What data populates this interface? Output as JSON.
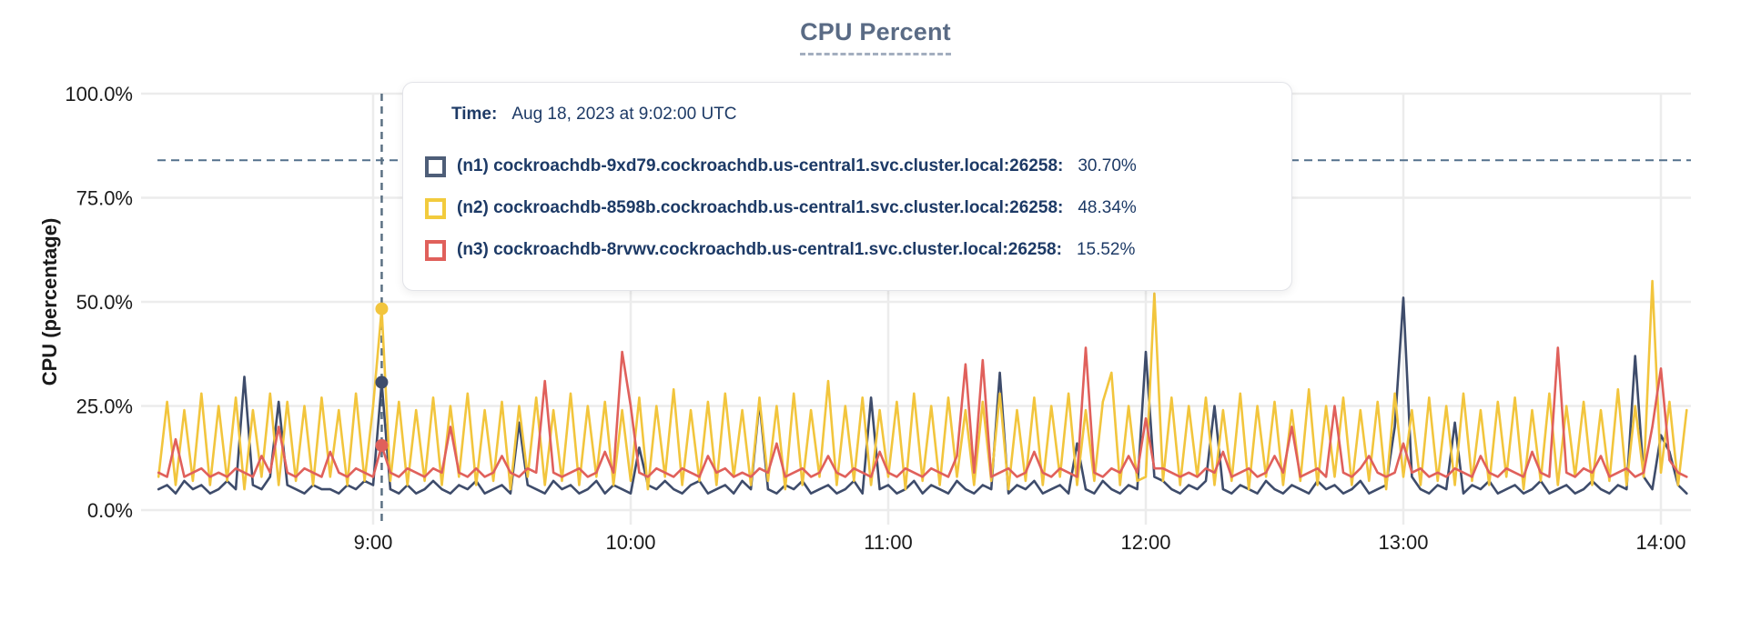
{
  "title": "CPU Percent",
  "tooltip": {
    "time_label": "Time:",
    "time_value": "Aug 18, 2023 at 9:02:00 UTC",
    "rows": [
      {
        "label": "(n1) cockroachdb-9xd79.cockroachdb.us-central1.svc.cluster.local:26258:",
        "value": "30.70%",
        "color": "#47587466"
      },
      {
        "label": "(n2) cockroachdb-8598b.cockroachdb.us-central1.svc.cluster.local:26258:",
        "value": "48.34%",
        "color": "#F2CB3D"
      },
      {
        "label": "(n3) cockroachdb-8rvwv.cockroachdb.us-central1.svc.cluster.local:26258:",
        "value": "15.52%",
        "color": "#E0605B"
      }
    ],
    "marker_colors": [
      "#4E5E78",
      "#F2CB3D",
      "#E0605B"
    ]
  },
  "chart_data": {
    "type": "line",
    "title": "CPU Percent",
    "xlabel": "",
    "ylabel": "CPU (percentage)",
    "ylim": [
      0,
      100
    ],
    "grid": true,
    "legend_position": "tooltip-overlay",
    "y_ticks": [
      {
        "value": 0,
        "label": "0.0%"
      },
      {
        "value": 25,
        "label": "25.0%"
      },
      {
        "value": 50,
        "label": "50.0%"
      },
      {
        "value": 75,
        "label": "75.0%"
      },
      {
        "value": 100,
        "label": "100.0%"
      }
    ],
    "x_ticks": [
      {
        "minute": 540,
        "label": "9:00"
      },
      {
        "minute": 600,
        "label": "10:00"
      },
      {
        "minute": 660,
        "label": "11:00"
      },
      {
        "minute": 720,
        "label": "12:00"
      },
      {
        "minute": 780,
        "label": "13:00"
      },
      {
        "minute": 840,
        "label": "14:00"
      }
    ],
    "threshold_dashed_percent": 84,
    "hover": {
      "minute": 542,
      "time": "Aug 18, 2023 at 9:02:00 UTC"
    },
    "t_start_min": 490,
    "t_step_min": 2,
    "series": [
      {
        "id": "n1",
        "name": "(n1) cockroachdb-9xd79.cockroachdb.us-central1.svc.cluster.local:26258",
        "color": "#3E4C6B",
        "hover_value_percent": 30.7,
        "values": [
          5,
          6,
          4,
          7,
          5,
          6,
          4,
          5,
          7,
          5,
          32,
          6,
          5,
          8,
          26,
          6,
          5,
          4,
          6,
          5,
          5,
          4,
          6,
          5,
          7,
          6,
          30.7,
          5,
          4,
          6,
          4,
          5,
          7,
          5,
          4,
          6,
          5,
          7,
          4,
          5,
          6,
          4,
          21,
          6,
          5,
          4,
          7,
          5,
          6,
          4,
          5,
          7,
          4,
          6,
          5,
          4,
          15,
          6,
          5,
          7,
          5,
          4,
          6,
          7,
          4,
          5,
          6,
          4,
          7,
          5,
          26,
          5,
          4,
          6,
          5,
          7,
          4,
          5,
          6,
          4,
          5,
          7,
          4,
          27,
          5,
          6,
          4,
          5,
          7,
          4,
          6,
          5,
          4,
          7,
          5,
          4,
          6,
          5,
          33,
          4,
          6,
          5,
          7,
          4,
          5,
          6,
          4,
          16,
          5,
          4,
          7,
          5,
          4,
          6,
          5,
          38,
          8,
          7,
          5,
          4,
          6,
          5,
          7,
          25,
          5,
          4,
          6,
          5,
          4,
          7,
          5,
          4,
          6,
          5,
          4,
          7,
          5,
          6,
          4,
          5,
          7,
          4,
          5,
          6,
          20,
          51,
          8,
          5,
          4,
          6,
          5,
          21,
          4,
          6,
          5,
          7,
          4,
          5,
          6,
          4,
          5,
          7,
          4,
          5,
          6,
          4,
          5,
          7,
          5,
          4,
          6,
          5,
          37,
          8,
          5,
          18,
          14,
          6,
          4
        ]
      },
      {
        "id": "n2",
        "name": "(n2) cockroachdb-8598b.cockroachdb.us-central1.svc.cluster.local:26258",
        "color": "#F2C53D",
        "hover_value_percent": 48.34,
        "values": [
          8,
          26,
          6,
          24,
          7,
          28,
          6,
          25,
          7,
          27,
          5,
          24,
          8,
          28,
          6,
          26,
          7,
          25,
          6,
          27,
          8,
          24,
          6,
          28,
          7,
          25,
          48.34,
          7,
          26,
          6,
          24,
          7,
          27,
          6,
          25,
          8,
          28,
          6,
          24,
          7,
          26,
          5,
          25,
          8,
          27,
          6,
          24,
          7,
          28,
          6,
          25,
          8,
          26,
          6,
          24,
          7,
          27,
          5,
          25,
          8,
          29,
          6,
          24,
          7,
          26,
          6,
          28,
          8,
          24,
          6,
          27,
          7,
          25,
          5,
          28,
          6,
          24,
          8,
          31,
          6,
          25,
          7,
          27,
          6,
          24,
          8,
          26,
          5,
          28,
          7,
          25,
          6,
          27,
          8,
          24,
          6,
          26,
          7,
          28,
          5,
          24,
          7,
          27,
          6,
          25,
          8,
          28,
          6,
          24,
          7,
          26,
          33,
          6,
          25,
          7,
          8,
          52,
          7,
          27,
          6,
          25,
          8,
          27,
          6,
          24,
          7,
          28,
          5,
          25,
          8,
          26,
          6,
          24,
          7,
          29,
          6,
          25,
          8,
          27,
          6,
          24,
          7,
          26,
          5,
          28,
          8,
          24,
          6,
          27,
          7,
          25,
          6,
          28,
          7,
          24,
          6,
          26,
          8,
          27,
          5,
          24,
          7,
          28,
          6,
          25,
          8,
          26,
          6,
          24,
          7,
          29,
          6,
          25,
          8,
          55,
          9,
          26,
          6,
          24
        ]
      },
      {
        "id": "n3",
        "name": "(n3) cockroachdb-8rvwv.cockroachdb.us-central1.svc.cluster.local:26258",
        "color": "#E0605B",
        "hover_value_percent": 15.52,
        "values": [
          9,
          8,
          17,
          8,
          9,
          10,
          8,
          9,
          8,
          10,
          9,
          8,
          13,
          9,
          20,
          9,
          8,
          10,
          9,
          8,
          14,
          9,
          8,
          10,
          9,
          8,
          15.52,
          9,
          8,
          10,
          9,
          8,
          10,
          9,
          20,
          9,
          8,
          10,
          8,
          9,
          13,
          9,
          8,
          10,
          9,
          31,
          9,
          8,
          9,
          10,
          8,
          9,
          14,
          9,
          38,
          25,
          9,
          8,
          10,
          9,
          8,
          10,
          9,
          8,
          13,
          9,
          10,
          8,
          9,
          8,
          10,
          9,
          16,
          8,
          9,
          10,
          8,
          9,
          13,
          9,
          8,
          10,
          9,
          8,
          14,
          9,
          8,
          10,
          9,
          8,
          10,
          9,
          8,
          13,
          35,
          9,
          36,
          8,
          9,
          10,
          8,
          9,
          14,
          9,
          8,
          10,
          9,
          8,
          39,
          9,
          8,
          10,
          9,
          13,
          9,
          22,
          10,
          10,
          9,
          8,
          9,
          8,
          10,
          9,
          14,
          8,
          9,
          10,
          8,
          9,
          13,
          9,
          20,
          8,
          9,
          10,
          8,
          25,
          9,
          8,
          10,
          13,
          9,
          8,
          9,
          16,
          9,
          10,
          8,
          9,
          8,
          10,
          9,
          8,
          13,
          9,
          8,
          10,
          9,
          8,
          14,
          9,
          8,
          39,
          9,
          8,
          10,
          9,
          13,
          8,
          9,
          10,
          8,
          9,
          20,
          34,
          12,
          9,
          8
        ]
      }
    ],
    "colors": {
      "grid": "#ECECEC",
      "threshold_dash": "#53708C",
      "hover_line": "#5B7083",
      "tick_text": "#1a1a1a",
      "title_text": "#5a6b85",
      "tooltip_text": "#1d3a66"
    }
  }
}
